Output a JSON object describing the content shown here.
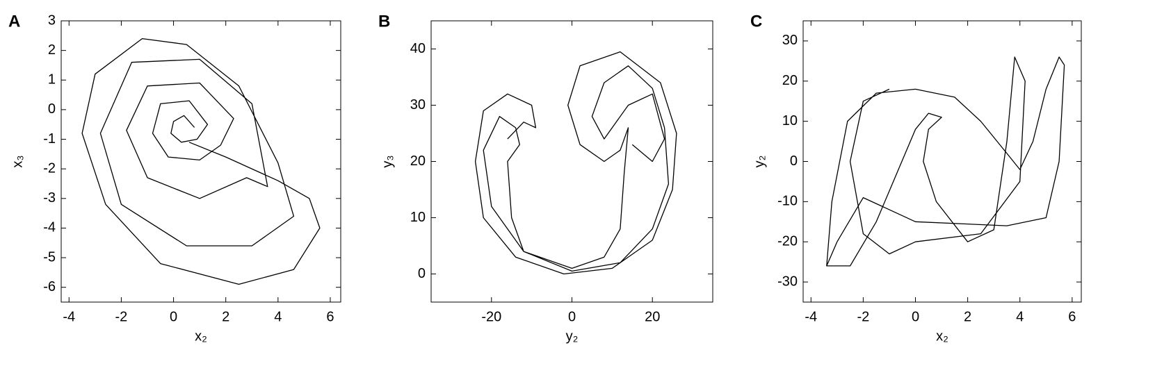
{
  "chart_data": [
    {
      "type": "line",
      "title": "A",
      "x_label": "x₂",
      "y_label": "x₃",
      "xlim": [
        -4.3,
        6.4
      ],
      "ylim": [
        -6.5,
        3
      ],
      "xticks": [
        -4,
        -2,
        0,
        2,
        4,
        6
      ],
      "yticks": [
        -6,
        -5,
        -4,
        -3,
        -2,
        -1,
        0,
        1,
        2,
        3
      ],
      "series": [
        {
          "color": "#000000",
          "x": [
            0.8,
            0.4,
            0,
            -0.1,
            0.3,
            0.9,
            1.3,
            0.6,
            -0.5,
            -0.8,
            -0.2,
            1.0,
            1.8,
            2.3,
            1.0,
            -1.0,
            -1.8,
            -1.0,
            1.0,
            2.8,
            3.6,
            3.0,
            1.0,
            -1.6,
            -2.8,
            -2.0,
            0.5,
            3.0,
            4.6,
            4.0,
            2.5,
            0.5,
            -1.2,
            -3.0,
            -3.5,
            -2.6,
            -0.5,
            2.5,
            4.6,
            5.6,
            5.2,
            4.0,
            2.0,
            0.6
          ],
          "values": [
            -0.6,
            -0.2,
            -0.4,
            -0.8,
            -1.1,
            -1.0,
            -0.5,
            0.3,
            0.2,
            -0.8,
            -1.6,
            -1.7,
            -1.2,
            -0.3,
            0.9,
            0.8,
            -0.7,
            -2.3,
            -3.0,
            -2.3,
            -2.6,
            0.2,
            1.7,
            1.6,
            -0.8,
            -3.2,
            -4.6,
            -4.6,
            -3.6,
            -1.8,
            0.8,
            2.2,
            2.4,
            1.2,
            -0.8,
            -3.2,
            -5.2,
            -5.9,
            -5.4,
            -4.0,
            -3.0,
            -2.4,
            -1.6,
            -1.1
          ]
        }
      ]
    },
    {
      "type": "line",
      "title": "B",
      "x_label": "y₂",
      "y_label": "y₃",
      "xlim": [
        -35,
        35
      ],
      "ylim": [
        -5,
        45
      ],
      "xticks": [
        -20,
        0,
        20
      ],
      "yticks": [
        0,
        10,
        20,
        30,
        40
      ],
      "series": [
        {
          "color": "#000000",
          "x": [
            -16,
            -12,
            -9,
            -10,
            -16,
            -22,
            -24,
            -22,
            -14,
            -2,
            10,
            20,
            25,
            26,
            22,
            12,
            2,
            -1,
            2,
            8,
            12,
            14,
            13,
            12,
            8,
            0,
            -12,
            -20,
            -22,
            -18,
            -14,
            -13,
            -16,
            -15,
            -12,
            0,
            12,
            20,
            24,
            23,
            20,
            14,
            8,
            5,
            8,
            14,
            20,
            23,
            20,
            15
          ],
          "values": [
            24,
            27,
            26,
            30,
            32,
            29,
            20,
            10,
            3,
            0,
            1,
            6,
            15,
            25,
            34,
            39.5,
            37,
            30,
            23,
            20,
            22,
            26,
            18,
            8,
            3,
            1,
            4,
            12,
            22,
            28,
            26,
            23,
            20,
            10,
            4,
            0.5,
            2,
            8,
            16,
            26,
            33,
            37,
            34,
            28,
            24,
            30,
            32,
            24,
            20,
            23
          ]
        }
      ]
    },
    {
      "type": "line",
      "title": "C",
      "x_label": "x₂",
      "y_label": "y₂",
      "xlim": [
        -4.3,
        6.35
      ],
      "ylim": [
        -35,
        35
      ],
      "xticks": [
        -4,
        -2,
        0,
        2,
        4,
        6
      ],
      "yticks": [
        -30,
        -20,
        -10,
        0,
        10,
        20,
        30
      ],
      "series": [
        {
          "color": "#000000",
          "x": [
            -3.4,
            -3.2,
            -2.6,
            -1.5,
            0,
            1.5,
            2.5,
            3.5,
            4,
            4.5,
            5,
            5.5,
            5.7,
            5.5,
            5,
            3.5,
            0,
            -2,
            -3,
            -3.4,
            -2.5,
            -1.5,
            0,
            0.5,
            1,
            0.5,
            0.3,
            0.8,
            2,
            3,
            3.5,
            3.8,
            4.2,
            4,
            2.5,
            0,
            -1,
            -2,
            -2.5,
            -2,
            -1
          ],
          "values": [
            -26,
            -10,
            10,
            17,
            18,
            16,
            10,
            2,
            -2,
            5,
            18,
            26,
            24,
            0,
            -14,
            -16,
            -15,
            -9,
            -20,
            -26,
            -26,
            -15,
            8,
            12,
            11,
            8,
            0,
            -10,
            -20,
            -17,
            5,
            26,
            20,
            -5,
            -18,
            -20,
            -23,
            -18,
            0,
            15,
            18
          ]
        }
      ]
    }
  ]
}
